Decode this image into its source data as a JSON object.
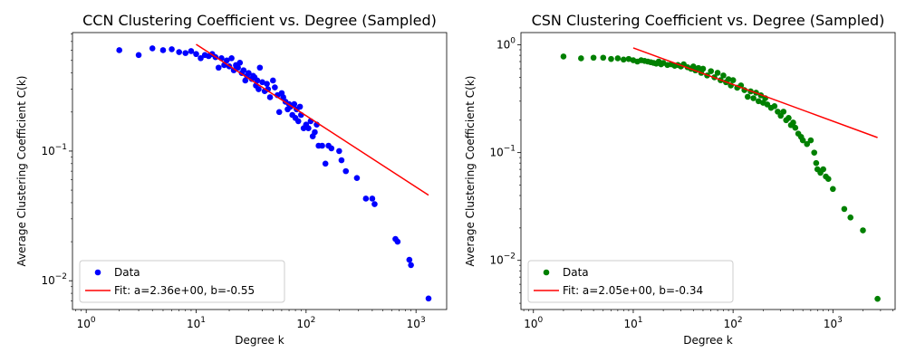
{
  "chart_data": [
    {
      "type": "scatter",
      "title": "CCN Clustering Coefficient vs. Degree (Sampled)",
      "xlabel": "Degree k",
      "ylabel": "Average Clustering Coefficient C(k)",
      "xscale": "log",
      "yscale": "log",
      "xlim": [
        0.75,
        1900
      ],
      "ylim": [
        0.006,
        0.82
      ],
      "xticks": [
        {
          "v": 1,
          "b": "10",
          "e": "0"
        },
        {
          "v": 10,
          "b": "10",
          "e": "1"
        },
        {
          "v": 100,
          "b": "10",
          "e": "2"
        },
        {
          "v": 1000,
          "b": "10",
          "e": "3"
        }
      ],
      "yticks": [
        {
          "v": 0.01,
          "b": "10",
          "e": "−2"
        },
        {
          "v": 0.1,
          "b": "10",
          "e": "−1"
        }
      ],
      "legend_position": "lower-left",
      "marker_color": "#0000ff",
      "fit_color": "#ff0000",
      "series": [
        {
          "name": "Data",
          "kind": "points",
          "x": [
            2,
            3,
            4,
            5,
            6,
            7,
            8,
            9,
            10,
            11,
            12,
            13,
            14,
            15,
            16,
            17,
            18,
            19,
            20,
            21,
            22,
            23,
            24,
            25,
            26,
            27,
            28,
            29,
            30,
            32,
            33,
            34,
            35,
            36,
            37,
            38,
            40,
            42,
            44,
            45,
            47,
            50,
            52,
            55,
            57,
            60,
            62,
            65,
            68,
            70,
            72,
            75,
            78,
            80,
            82,
            85,
            88,
            90,
            95,
            100,
            105,
            110,
            115,
            120,
            125,
            130,
            140,
            150,
            160,
            170,
            200,
            210,
            230,
            290,
            350,
            400,
            420,
            650,
            680,
            870,
            900,
            1300
          ],
          "y": [
            0.6,
            0.55,
            0.62,
            0.6,
            0.61,
            0.58,
            0.57,
            0.59,
            0.56,
            0.52,
            0.55,
            0.54,
            0.56,
            0.53,
            0.44,
            0.52,
            0.46,
            0.5,
            0.45,
            0.52,
            0.42,
            0.46,
            0.44,
            0.48,
            0.4,
            0.42,
            0.35,
            0.38,
            0.4,
            0.36,
            0.38,
            0.37,
            0.32,
            0.35,
            0.3,
            0.44,
            0.34,
            0.29,
            0.33,
            0.3,
            0.26,
            0.35,
            0.31,
            0.27,
            0.2,
            0.28,
            0.26,
            0.24,
            0.21,
            0.23,
            0.22,
            0.19,
            0.23,
            0.18,
            0.21,
            0.17,
            0.22,
            0.19,
            0.15,
            0.16,
            0.15,
            0.17,
            0.13,
            0.14,
            0.16,
            0.11,
            0.11,
            0.08,
            0.11,
            0.105,
            0.1,
            0.085,
            0.07,
            0.062,
            0.043,
            0.043,
            0.039,
            0.021,
            0.02,
            0.0145,
            0.0132,
            0.0073
          ]
        },
        {
          "name": "Fit: a=2.36e+00, b=-0.55",
          "kind": "line",
          "a": 2.36,
          "b": -0.55,
          "x_range": [
            10,
            1300
          ]
        }
      ]
    },
    {
      "type": "scatter",
      "title": "CSN Clustering Coefficient vs. Degree (Sampled)",
      "xlabel": "Degree k",
      "ylabel": "Average Clustering Coefficient C(k)",
      "xscale": "log",
      "yscale": "log",
      "xlim": [
        0.75,
        4200
      ],
      "ylim": [
        0.0035,
        1.3
      ],
      "xticks": [
        {
          "v": 1,
          "b": "10",
          "e": "0"
        },
        {
          "v": 10,
          "b": "10",
          "e": "1"
        },
        {
          "v": 100,
          "b": "10",
          "e": "2"
        },
        {
          "v": 1000,
          "b": "10",
          "e": "3"
        }
      ],
      "yticks": [
        {
          "v": 0.01,
          "b": "10",
          "e": "−2"
        },
        {
          "v": 0.1,
          "b": "10",
          "e": "−1"
        },
        {
          "v": 1,
          "b": "10",
          "e": "0"
        }
      ],
      "legend_position": "lower-left",
      "marker_color": "#008000",
      "fit_color": "#ff0000",
      "series": [
        {
          "name": "Data",
          "kind": "points",
          "x": [
            2,
            3,
            4,
            5,
            6,
            7,
            8,
            9,
            10,
            11,
            12,
            13,
            14,
            15,
            16,
            17,
            18,
            19,
            20,
            22,
            24,
            26,
            28,
            30,
            32,
            35,
            38,
            40,
            42,
            45,
            48,
            50,
            55,
            60,
            65,
            70,
            75,
            80,
            85,
            90,
            95,
            100,
            110,
            120,
            130,
            140,
            150,
            160,
            170,
            180,
            190,
            200,
            210,
            220,
            240,
            260,
            280,
            300,
            320,
            340,
            360,
            380,
            400,
            420,
            450,
            480,
            500,
            550,
            600,
            650,
            680,
            700,
            750,
            800,
            850,
            900,
            1000,
            1300,
            1500,
            2000,
            2800
          ],
          "y": [
            0.78,
            0.75,
            0.76,
            0.76,
            0.74,
            0.75,
            0.73,
            0.74,
            0.72,
            0.7,
            0.72,
            0.71,
            0.7,
            0.69,
            0.68,
            0.67,
            0.7,
            0.66,
            0.68,
            0.65,
            0.66,
            0.64,
            0.65,
            0.63,
            0.66,
            0.62,
            0.6,
            0.63,
            0.58,
            0.61,
            0.55,
            0.6,
            0.52,
            0.57,
            0.5,
            0.55,
            0.47,
            0.52,
            0.45,
            0.48,
            0.42,
            0.47,
            0.4,
            0.42,
            0.38,
            0.33,
            0.37,
            0.32,
            0.36,
            0.3,
            0.34,
            0.29,
            0.32,
            0.28,
            0.26,
            0.27,
            0.24,
            0.22,
            0.24,
            0.2,
            0.21,
            0.18,
            0.19,
            0.17,
            0.15,
            0.14,
            0.13,
            0.12,
            0.13,
            0.1,
            0.08,
            0.07,
            0.065,
            0.07,
            0.06,
            0.057,
            0.046,
            0.03,
            0.025,
            0.019,
            0.0044
          ]
        },
        {
          "name": "Fit: a=2.05e+00, b=-0.34",
          "kind": "line",
          "a": 2.05,
          "b": -0.34,
          "x_range": [
            10,
            2800
          ]
        }
      ]
    }
  ]
}
